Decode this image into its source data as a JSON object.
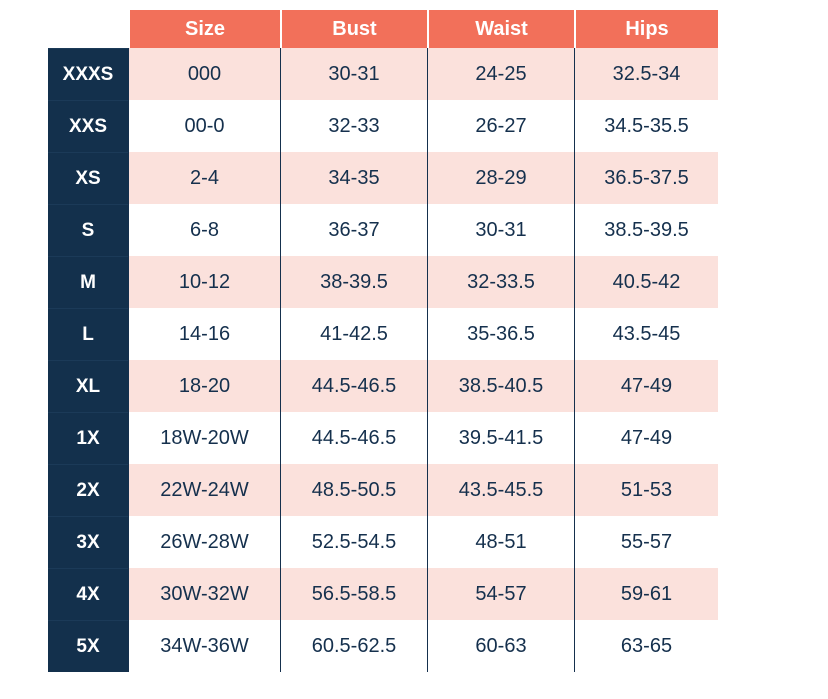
{
  "headers": [
    "Size",
    "Bust",
    "Waist",
    "Hips"
  ],
  "rows": [
    {
      "label": "XXXS",
      "size": "000",
      "bust": "30-31",
      "waist": "24-25",
      "hips": "32.5-34"
    },
    {
      "label": "XXS",
      "size": "00-0",
      "bust": "32-33",
      "waist": "26-27",
      "hips": "34.5-35.5"
    },
    {
      "label": "XS",
      "size": "2-4",
      "bust": "34-35",
      "waist": "28-29",
      "hips": "36.5-37.5"
    },
    {
      "label": "S",
      "size": "6-8",
      "bust": "36-37",
      "waist": "30-31",
      "hips": "38.5-39.5"
    },
    {
      "label": "M",
      "size": "10-12",
      "bust": "38-39.5",
      "waist": "32-33.5",
      "hips": "40.5-42"
    },
    {
      "label": "L",
      "size": "14-16",
      "bust": "41-42.5",
      "waist": "35-36.5",
      "hips": "43.5-45"
    },
    {
      "label": "XL",
      "size": "18-20",
      "bust": "44.5-46.5",
      "waist": "38.5-40.5",
      "hips": "47-49"
    },
    {
      "label": "1X",
      "size": "18W-20W",
      "bust": "44.5-46.5",
      "waist": "39.5-41.5",
      "hips": "47-49"
    },
    {
      "label": "2X",
      "size": "22W-24W",
      "bust": "48.5-50.5",
      "waist": "43.5-45.5",
      "hips": "51-53"
    },
    {
      "label": "3X",
      "size": "26W-28W",
      "bust": "52.5-54.5",
      "waist": "48-51",
      "hips": "55-57"
    },
    {
      "label": "4X",
      "size": "30W-32W",
      "bust": "56.5-58.5",
      "waist": "54-57",
      "hips": "59-61"
    },
    {
      "label": "5X",
      "size": "34W-36W",
      "bust": "60.5-62.5",
      "waist": "60-63",
      "hips": "63-65"
    }
  ],
  "colors": {
    "header_bg": "#f2705a",
    "label_bg": "#13304c",
    "stripe_bg": "#fbe1dc",
    "text": "#15304d"
  }
}
